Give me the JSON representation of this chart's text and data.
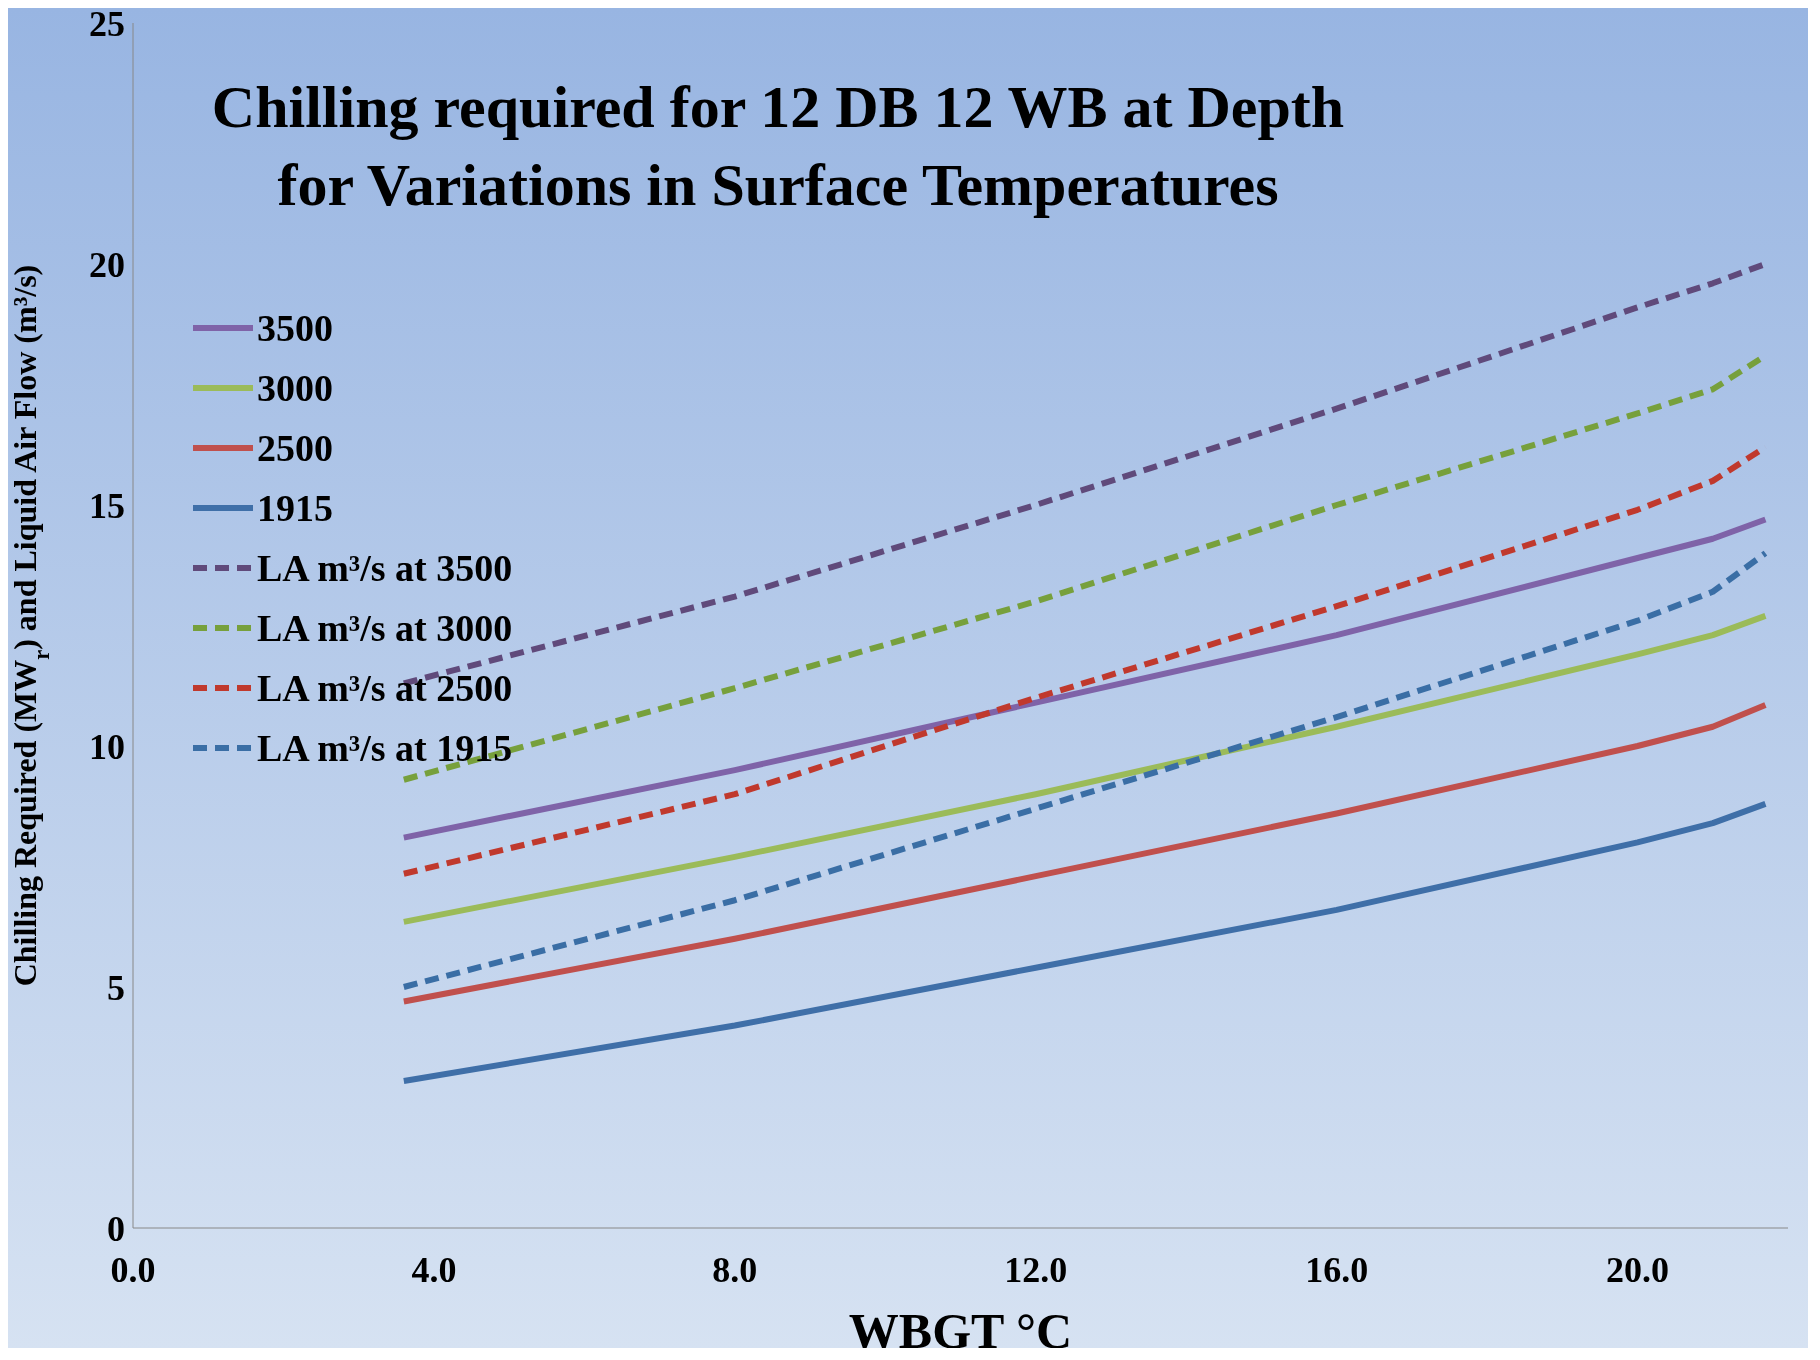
{
  "chart_data": {
    "type": "line",
    "title": "Chilling required for 12 DB 12 WB at Depth\nfor Variations in Surface Temperatures",
    "xlabel": "WBGT °C",
    "ylabel": "Chilling Required (MW$_{r}$) and Liquid Air Flow (m³/s)",
    "x": [
      3.6,
      8,
      12,
      16,
      20,
      21,
      21.7
    ],
    "xlim": [
      0,
      22
    ],
    "xticks": [
      {
        "value": 0,
        "label": "0.0"
      },
      {
        "value": 4,
        "label": "4.0"
      },
      {
        "value": 8,
        "label": "8.0"
      },
      {
        "value": 12,
        "label": "12.0"
      },
      {
        "value": 16,
        "label": "16.0"
      },
      {
        "value": 20,
        "label": "20.0"
      }
    ],
    "ylim": [
      0,
      25
    ],
    "yticks": [
      0,
      5,
      10,
      15,
      20,
      25
    ],
    "grid": false,
    "legend": "top left",
    "marker": "none",
    "series": [
      {
        "name": "3500",
        "color": "#7f63a8",
        "line_style": "solid",
        "values": [
          8.1,
          9.5,
          10.9,
          12.3,
          13.9,
          14.3,
          14.7
        ]
      },
      {
        "name": "3000",
        "color": "#9bbb59",
        "line_style": "solid",
        "values": [
          6.35,
          7.7,
          9.0,
          10.4,
          11.9,
          12.3,
          12.7
        ]
      },
      {
        "name": "2500",
        "color": "#c0504d",
        "line_style": "solid",
        "values": [
          4.7,
          6.0,
          7.3,
          8.6,
          10.0,
          10.4,
          10.85
        ]
      },
      {
        "name": "1915",
        "color": "#3f6fa8",
        "line_style": "solid",
        "values": [
          3.05,
          4.2,
          5.4,
          6.6,
          8.0,
          8.4,
          8.8
        ]
      },
      {
        "name": "LA m³/s at 3500",
        "color": "#604a7b",
        "line_style": "dashed",
        "values": [
          11.3,
          13.1,
          15.0,
          17.0,
          19.1,
          19.6,
          20.0
        ]
      },
      {
        "name": "LA m³/s at 3000",
        "color": "#77a03c",
        "line_style": "dashed",
        "values": [
          9.3,
          11.2,
          13.0,
          15.0,
          16.9,
          17.4,
          18.1
        ]
      },
      {
        "name": "LA m³/s at 2500",
        "color": "#c0392d",
        "line_style": "dashed",
        "values": [
          7.35,
          9.0,
          11.0,
          12.9,
          14.9,
          15.5,
          16.2
        ]
      },
      {
        "name": "LA m³/s at 1915",
        "color": "#3a6ea5",
        "line_style": "dashed",
        "values": [
          5.0,
          6.8,
          8.7,
          10.6,
          12.6,
          13.2,
          14.0
        ]
      }
    ]
  }
}
